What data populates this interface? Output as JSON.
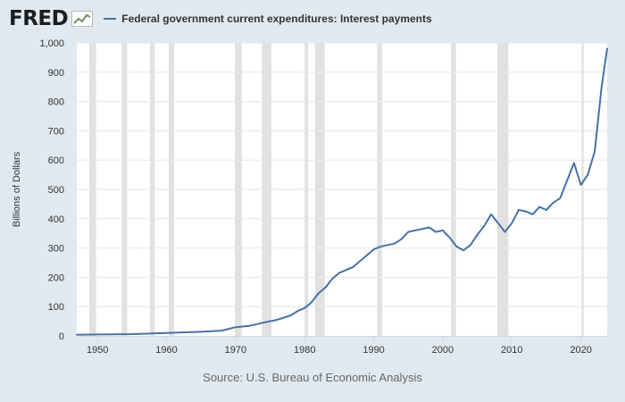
{
  "header": {
    "logo_text": "FRED",
    "legend_label": "Federal government current expenditures: Interest payments"
  },
  "colors": {
    "background": "#e1e9f0",
    "plot_background": "#ffffff",
    "line": "#4572a7",
    "recession_band": "#e1e1e1",
    "grid": "#e6e6e6"
  },
  "chart_data": {
    "type": "line",
    "title": "Federal government current expenditures: Interest payments",
    "xlabel": "",
    "ylabel": "Billions of Dollars",
    "xlim": [
      1947,
      2023.8
    ],
    "ylim": [
      0,
      1000
    ],
    "x_ticks": [
      1950,
      1960,
      1970,
      1980,
      1990,
      2000,
      2010,
      2020
    ],
    "y_ticks": [
      0,
      100,
      200,
      300,
      400,
      500,
      600,
      700,
      800,
      900,
      1000
    ],
    "y_tick_labels": [
      "0",
      "100",
      "200",
      "300",
      "400",
      "500",
      "600",
      "700",
      "800",
      "900",
      "1,000"
    ],
    "grid": true,
    "recessions": [
      [
        1948.8,
        1949.8
      ],
      [
        1953.5,
        1954.3
      ],
      [
        1957.6,
        1958.3
      ],
      [
        1960.3,
        1961.1
      ],
      [
        1969.9,
        1970.9
      ],
      [
        1973.8,
        1975.2
      ],
      [
        1980.0,
        1980.5
      ],
      [
        1981.5,
        1982.9
      ],
      [
        1990.5,
        1991.2
      ],
      [
        2001.2,
        2001.9
      ],
      [
        2007.9,
        2009.5
      ],
      [
        2020.1,
        2020.4
      ]
    ],
    "series": [
      {
        "name": "Federal government current expenditures: Interest payments",
        "x": [
          1947,
          1950,
          1955,
          1960,
          1965,
          1968,
          1970,
          1972,
          1974,
          1976,
          1978,
          1979,
          1980,
          1981,
          1982,
          1983,
          1984,
          1985,
          1986,
          1987,
          1988,
          1989,
          1990,
          1991,
          1992,
          1993,
          1994,
          1995,
          1996,
          1997,
          1998,
          1999,
          2000,
          2001,
          2002,
          2003,
          2004,
          2005,
          2006,
          2007,
          2008,
          2009,
          2010,
          2011,
          2012,
          2013,
          2014,
          2015,
          2016,
          2017,
          2018,
          2019,
          2020,
          2021,
          2022,
          2023,
          2023.8
        ],
        "y": [
          4,
          5,
          6,
          10,
          14,
          18,
          30,
          34,
          45,
          55,
          70,
          85,
          95,
          115,
          145,
          165,
          195,
          215,
          225,
          235,
          255,
          275,
          295,
          305,
          310,
          315,
          330,
          355,
          360,
          365,
          370,
          355,
          360,
          335,
          305,
          292,
          310,
          345,
          375,
          415,
          385,
          355,
          385,
          430,
          425,
          415,
          440,
          430,
          455,
          470,
          530,
          590,
          515,
          550,
          630,
          850,
          980
        ]
      }
    ]
  },
  "source": "Source: U.S. Bureau of Economic Analysis"
}
